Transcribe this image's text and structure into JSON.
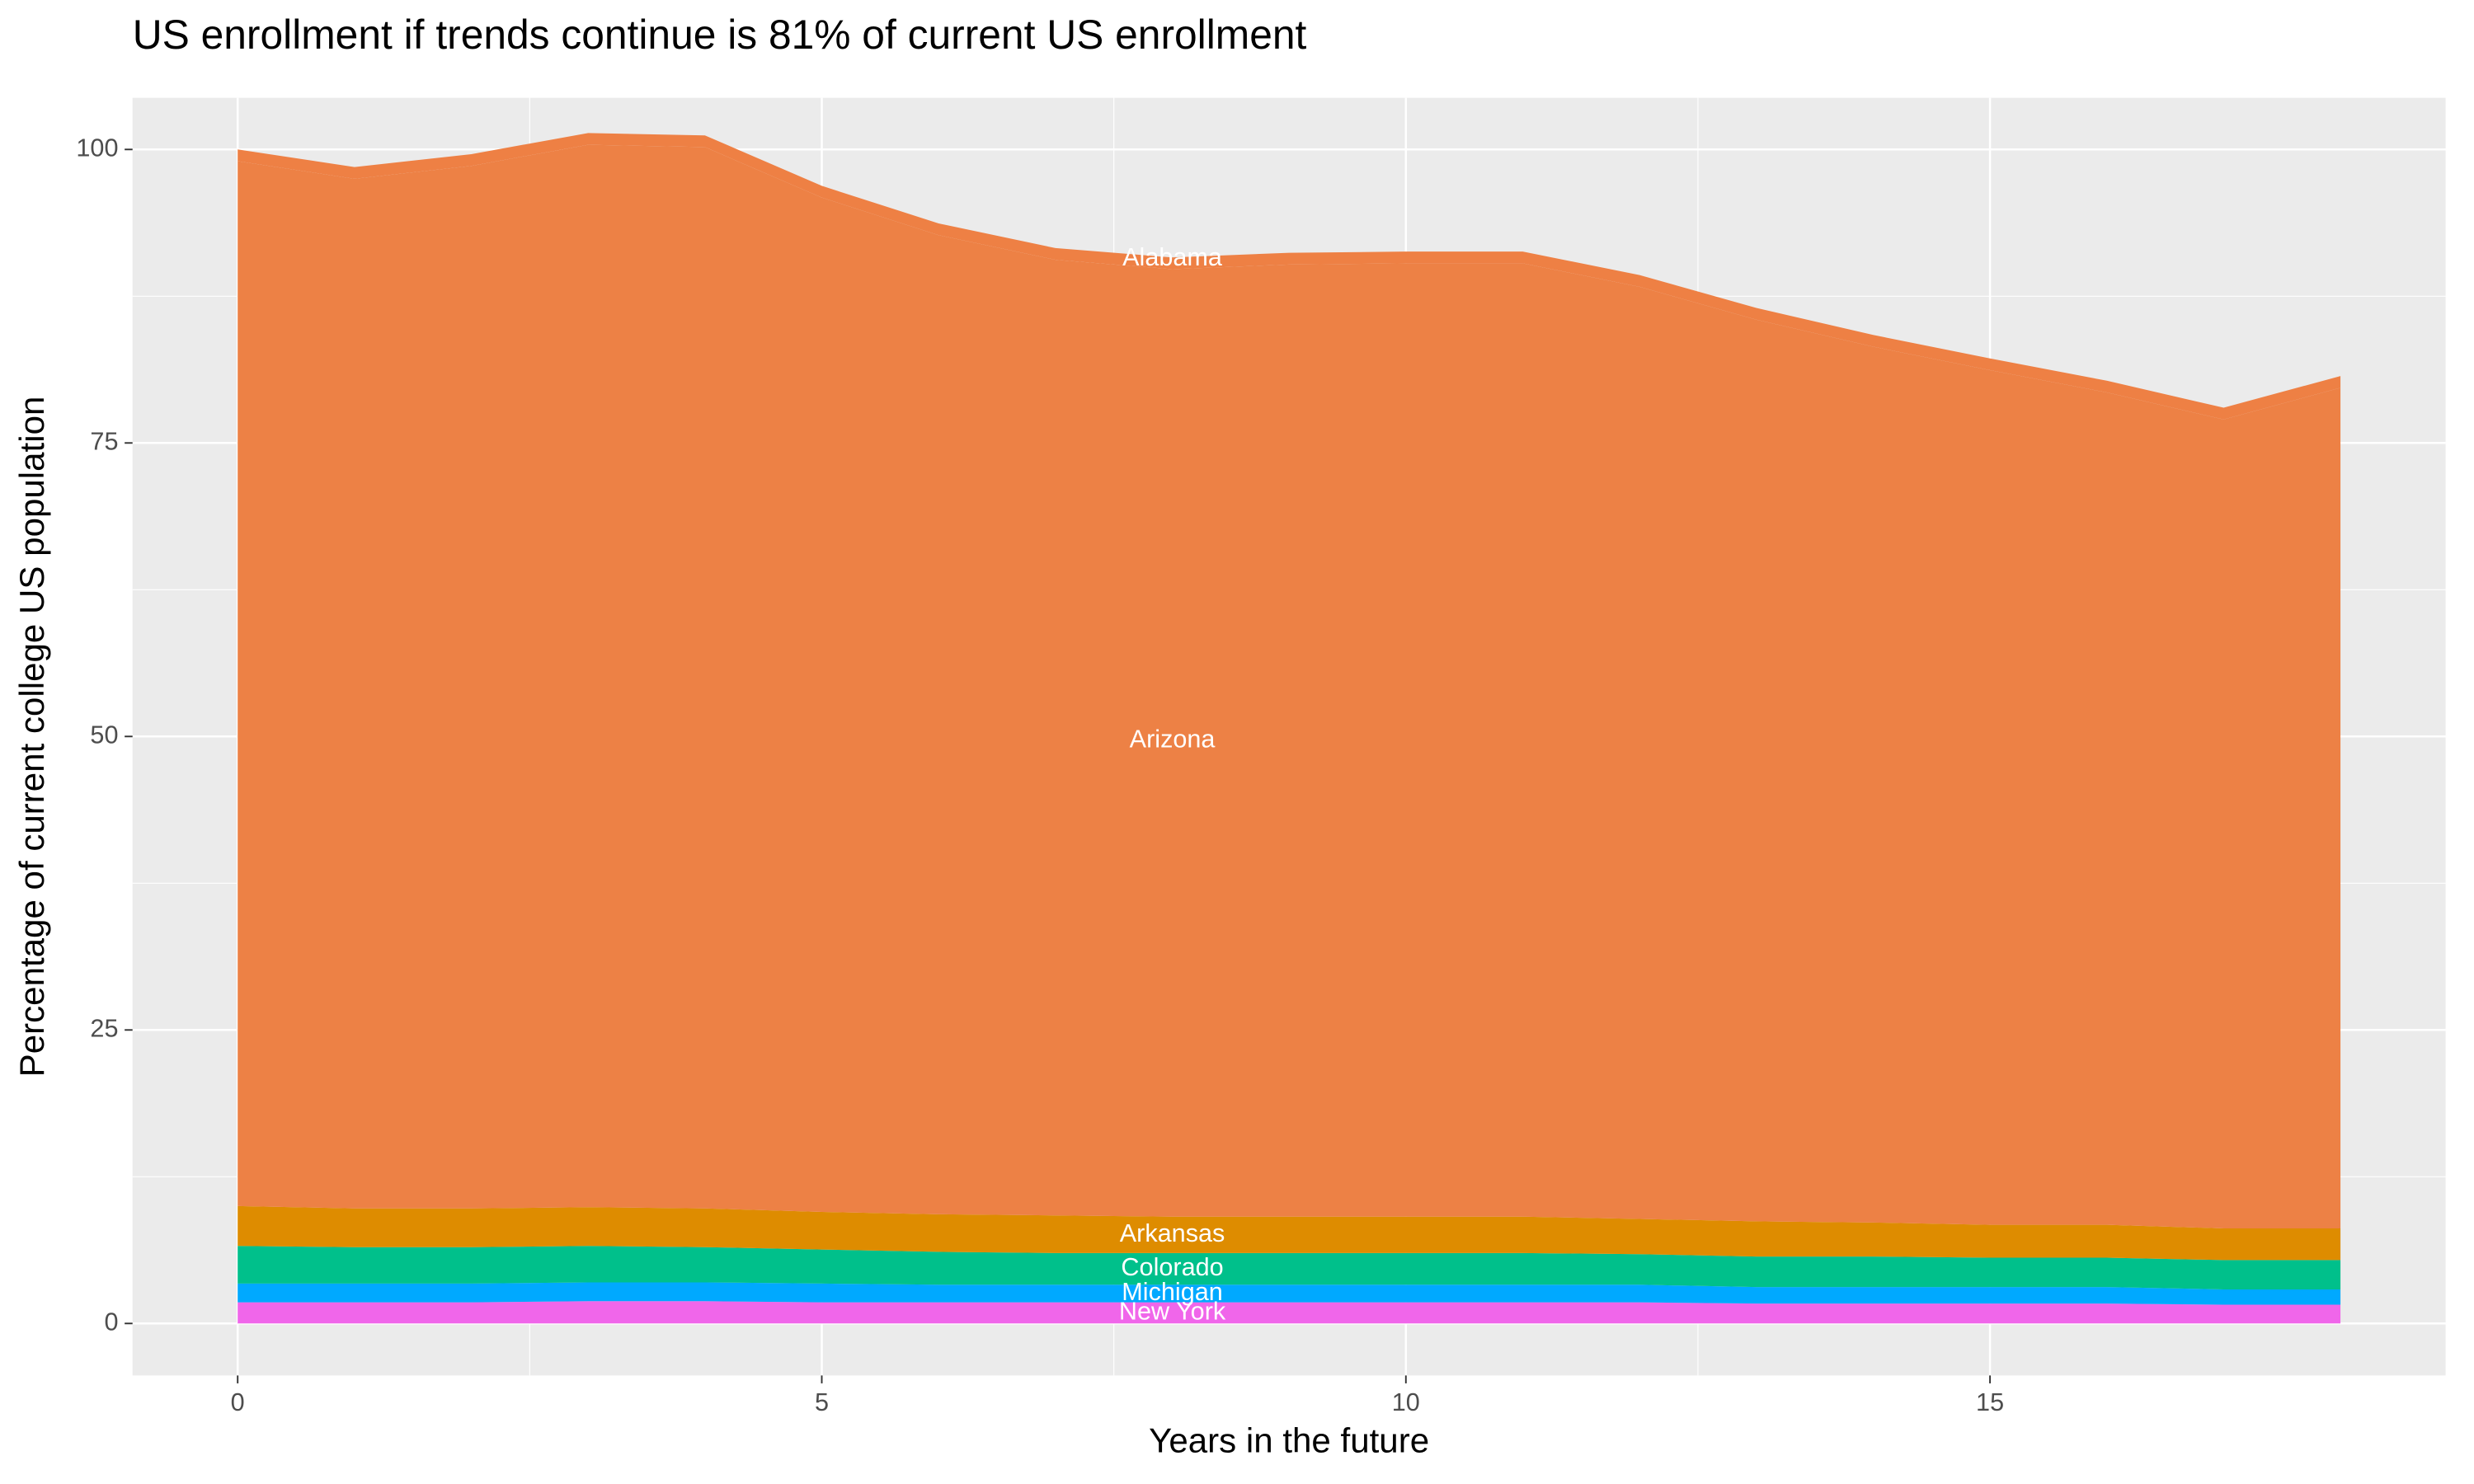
{
  "chart_data": {
    "type": "area",
    "stacked": true,
    "title": "US enrollment if trends continue is 81% of current US enrollment",
    "x_label": "Years in the future",
    "y_label": "Percentage of current college US population",
    "x": [
      0,
      1,
      2,
      3,
      4,
      5,
      6,
      7,
      8,
      9,
      10,
      11,
      12,
      13,
      14,
      15,
      16,
      17,
      18
    ],
    "xlim": [
      -0.9,
      18.9
    ],
    "xticks": [
      0,
      5,
      10,
      15
    ],
    "ylim": [
      -4.43,
      104.4
    ],
    "yticks": [
      0,
      25,
      50,
      75,
      100
    ],
    "grid": true,
    "label_index": 9,
    "series": [
      {
        "name": "New York",
        "color": "#f066ea",
        "values": [
          1.8,
          1.8,
          1.8,
          1.9,
          1.9,
          1.8,
          1.8,
          1.8,
          1.8,
          1.8,
          1.8,
          1.8,
          1.8,
          1.7,
          1.7,
          1.7,
          1.7,
          1.6,
          1.6
        ]
      },
      {
        "name": "Michigan",
        "color": "#00a9ff",
        "values": [
          1.6,
          1.6,
          1.6,
          1.6,
          1.6,
          1.6,
          1.5,
          1.5,
          1.5,
          1.5,
          1.5,
          1.5,
          1.5,
          1.4,
          1.4,
          1.4,
          1.4,
          1.3,
          1.3
        ]
      },
      {
        "name": "Colorado",
        "color": "#00c08b",
        "values": [
          3.2,
          3.1,
          3.1,
          3.1,
          3.0,
          2.9,
          2.8,
          2.7,
          2.7,
          2.7,
          2.7,
          2.7,
          2.6,
          2.6,
          2.6,
          2.5,
          2.5,
          2.5,
          2.5
        ]
      },
      {
        "name": "Arkansas",
        "color": "#de8c00",
        "values": [
          3.4,
          3.3,
          3.3,
          3.3,
          3.3,
          3.2,
          3.2,
          3.2,
          3.1,
          3.1,
          3.1,
          3.1,
          3.0,
          3.0,
          2.9,
          2.8,
          2.8,
          2.7,
          2.7
        ]
      },
      {
        "name": "Arizona",
        "color": "#ed8145",
        "values": [
          89.0,
          87.7,
          88.8,
          90.5,
          90.4,
          86.4,
          83.4,
          81.4,
          80.7,
          81.1,
          81.2,
          81.2,
          79.4,
          76.8,
          74.6,
          72.8,
          70.9,
          68.9,
          71.6
        ]
      },
      {
        "name": "Alabama",
        "color": "#ee8044",
        "values": [
          1.0,
          1.0,
          1.0,
          1.0,
          1.0,
          1.0,
          1.0,
          1.0,
          1.0,
          1.0,
          1.0,
          1.0,
          1.0,
          1.0,
          1.0,
          1.0,
          1.0,
          1.0,
          1.0
        ]
      }
    ]
  }
}
